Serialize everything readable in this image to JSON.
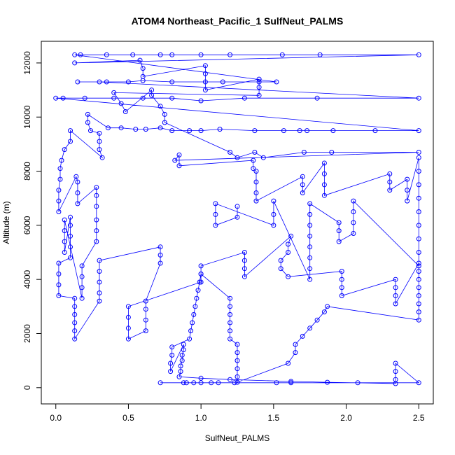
{
  "chart_data": {
    "type": "scatter",
    "title": "ATOM4 Northeast_Pacific_1 SulfNeut_PALMS",
    "xlabel": "SulfNeut_PALMS",
    "ylabel": "Altitude (m)",
    "xlim": [
      -0.1,
      2.6
    ],
    "ylim": [
      -600,
      12800
    ],
    "x_ticks": [
      "0.0",
      "0.5",
      "1.0",
      "1.5",
      "2.0",
      "2.5"
    ],
    "y_ticks": [
      "0",
      "2000",
      "4000",
      "6000",
      "8000",
      "10000",
      "12000"
    ],
    "grid": false,
    "legend": "none",
    "marker": "open-circle",
    "connect_points": true,
    "color": "#0000ff",
    "series": [
      {
        "values": [
          [
            0.72,
            180
          ],
          [
            0.88,
            180
          ],
          [
            0.9,
            180
          ],
          [
            0.95,
            180
          ],
          [
            1.0,
            180
          ],
          [
            1.07,
            180
          ],
          [
            1.12,
            180
          ],
          [
            1.23,
            180
          ],
          [
            1.52,
            180
          ],
          [
            1.62,
            180
          ],
          [
            2.08,
            180
          ],
          [
            2.5,
            180
          ],
          [
            2.34,
            900
          ],
          [
            2.34,
            600
          ],
          [
            2.34,
            300
          ],
          [
            2.34,
            150
          ],
          [
            1.87,
            200
          ],
          [
            1.62,
            230
          ],
          [
            1.2,
            300
          ],
          [
            1.0,
            350
          ],
          [
            0.85,
            400
          ],
          [
            0.86,
            600
          ],
          [
            0.86,
            800
          ],
          [
            0.87,
            1000
          ],
          [
            0.87,
            1200
          ],
          [
            0.88,
            1400
          ],
          [
            0.88,
            1600
          ],
          [
            0.79,
            600
          ],
          [
            0.79,
            900
          ],
          [
            0.8,
            1200
          ],
          [
            0.8,
            1500
          ],
          [
            0.92,
            1800
          ],
          [
            0.93,
            2100
          ],
          [
            0.94,
            2400
          ],
          [
            0.95,
            2700
          ],
          [
            0.96,
            3000
          ],
          [
            0.97,
            3300
          ],
          [
            0.98,
            3600
          ],
          [
            0.99,
            3900
          ],
          [
            1.0,
            4200
          ],
          [
            1.2,
            3300
          ],
          [
            1.2,
            3000
          ],
          [
            1.2,
            2700
          ],
          [
            1.2,
            2400
          ],
          [
            1.2,
            2100
          ],
          [
            1.2,
            1800
          ],
          [
            1.25,
            1600
          ],
          [
            1.25,
            1300
          ],
          [
            1.25,
            1000
          ],
          [
            1.25,
            700
          ],
          [
            1.25,
            400
          ],
          [
            1.25,
            200
          ],
          [
            1.6,
            900
          ],
          [
            1.65,
            1300
          ],
          [
            1.65,
            1600
          ],
          [
            1.7,
            1900
          ],
          [
            1.75,
            2200
          ],
          [
            1.8,
            2500
          ],
          [
            1.85,
            2800
          ],
          [
            1.87,
            3000
          ],
          [
            2.5,
            2500
          ],
          [
            2.5,
            2800
          ],
          [
            2.5,
            3100
          ],
          [
            2.5,
            3400
          ],
          [
            2.5,
            3700
          ],
          [
            2.5,
            4000
          ],
          [
            2.5,
            4300
          ],
          [
            2.5,
            4600
          ],
          [
            2.34,
            3100
          ],
          [
            2.34,
            3400
          ],
          [
            2.34,
            3700
          ],
          [
            2.34,
            4000
          ],
          [
            1.97,
            3400
          ],
          [
            1.97,
            3700
          ],
          [
            1.97,
            4000
          ],
          [
            1.97,
            4300
          ],
          [
            1.6,
            4100
          ],
          [
            1.55,
            4400
          ],
          [
            1.55,
            4700
          ],
          [
            1.6,
            5000
          ],
          [
            1.6,
            5300
          ],
          [
            1.62,
            5600
          ],
          [
            1.3,
            4100
          ],
          [
            1.3,
            4400
          ],
          [
            1.3,
            4700
          ],
          [
            1.3,
            5000
          ],
          [
            1.0,
            4500
          ],
          [
            1.0,
            4200
          ],
          [
            1.0,
            3900
          ],
          [
            0.5,
            3000
          ],
          [
            0.5,
            2600
          ],
          [
            0.5,
            2200
          ],
          [
            0.5,
            1800
          ],
          [
            0.62,
            2100
          ],
          [
            0.62,
            2500
          ],
          [
            0.62,
            2900
          ],
          [
            0.62,
            3200
          ],
          [
            0.72,
            4600
          ],
          [
            0.72,
            4900
          ],
          [
            0.72,
            5200
          ],
          [
            0.3,
            4700
          ],
          [
            0.3,
            4300
          ],
          [
            0.3,
            3900
          ],
          [
            0.3,
            3500
          ],
          [
            0.3,
            3200
          ],
          [
            0.13,
            1800
          ],
          [
            0.13,
            2100
          ],
          [
            0.13,
            2400
          ],
          [
            0.13,
            2700
          ],
          [
            0.13,
            3000
          ],
          [
            0.13,
            3300
          ],
          [
            0.02,
            3400
          ],
          [
            0.02,
            3800
          ],
          [
            0.02,
            4200
          ],
          [
            0.02,
            4600
          ],
          [
            0.1,
            4800
          ],
          [
            0.1,
            5200
          ],
          [
            0.1,
            5600
          ],
          [
            0.1,
            6000
          ],
          [
            0.1,
            6300
          ],
          [
            0.06,
            5000
          ],
          [
            0.06,
            5400
          ],
          [
            0.06,
            5800
          ],
          [
            0.06,
            6200
          ],
          [
            0.18,
            3300
          ],
          [
            0.18,
            3700
          ],
          [
            0.18,
            4100
          ],
          [
            0.18,
            4500
          ],
          [
            0.28,
            5400
          ],
          [
            0.28,
            5800
          ],
          [
            0.28,
            6200
          ],
          [
            0.28,
            6700
          ],
          [
            0.28,
            7100
          ],
          [
            0.28,
            7400
          ],
          [
            0.15,
            6800
          ],
          [
            0.15,
            7200
          ],
          [
            0.15,
            7600
          ],
          [
            0.14,
            7800
          ],
          [
            0.02,
            6500
          ],
          [
            0.02,
            6900
          ],
          [
            0.02,
            7300
          ],
          [
            0.03,
            7700
          ],
          [
            0.03,
            8100
          ],
          [
            0.04,
            8400
          ],
          [
            0.06,
            8800
          ],
          [
            0.1,
            9100
          ],
          [
            0.1,
            9500
          ],
          [
            0.32,
            8500
          ],
          [
            0.3,
            8800
          ],
          [
            0.3,
            9100
          ],
          [
            0.3,
            9400
          ],
          [
            0.24,
            9500
          ],
          [
            0.22,
            9800
          ],
          [
            0.22,
            10100
          ],
          [
            0.36,
            9600
          ],
          [
            0.45,
            9600
          ],
          [
            0.55,
            9550
          ],
          [
            0.62,
            9550
          ],
          [
            0.72,
            9600
          ],
          [
            0.8,
            9500
          ],
          [
            0.92,
            9500
          ],
          [
            1.0,
            9500
          ],
          [
            1.13,
            9550
          ],
          [
            1.37,
            9500
          ],
          [
            1.57,
            9500
          ],
          [
            1.68,
            9500
          ],
          [
            1.73,
            9500
          ],
          [
            1.91,
            9500
          ],
          [
            2.2,
            9500
          ],
          [
            2.5,
            9500
          ],
          [
            0.0,
            10700
          ],
          [
            0.05,
            10700
          ],
          [
            0.2,
            10700
          ],
          [
            0.4,
            10700
          ],
          [
            0.6,
            10700
          ],
          [
            0.8,
            10700
          ],
          [
            1.0,
            10600
          ],
          [
            1.3,
            10700
          ],
          [
            1.8,
            10700
          ],
          [
            2.5,
            10700
          ],
          [
            0.3,
            11300
          ],
          [
            0.35,
            11300
          ],
          [
            0.15,
            11300
          ],
          [
            0.5,
            11300
          ],
          [
            0.6,
            11350
          ],
          [
            0.8,
            11300
          ],
          [
            1.15,
            11300
          ],
          [
            1.4,
            11300
          ],
          [
            1.52,
            11300
          ],
          [
            0.13,
            12300
          ],
          [
            0.17,
            12300
          ],
          [
            0.35,
            12300
          ],
          [
            0.53,
            12300
          ],
          [
            0.72,
            12300
          ],
          [
            0.8,
            12300
          ],
          [
            1.0,
            12300
          ],
          [
            1.2,
            12300
          ],
          [
            1.56,
            12300
          ],
          [
            1.82,
            12300
          ],
          [
            2.5,
            12300
          ],
          [
            0.13,
            12000
          ],
          [
            0.58,
            12100
          ],
          [
            0.6,
            11800
          ],
          [
            0.6,
            11500
          ],
          [
            1.03,
            11900
          ],
          [
            1.03,
            11600
          ],
          [
            1.03,
            11300
          ],
          [
            1.03,
            11000
          ],
          [
            1.4,
            11400
          ],
          [
            1.4,
            11100
          ],
          [
            1.4,
            10800
          ],
          [
            0.4,
            10900
          ],
          [
            0.45,
            10500
          ],
          [
            0.48,
            10200
          ],
          [
            0.66,
            11000
          ],
          [
            0.66,
            10800
          ],
          [
            0.72,
            10400
          ],
          [
            0.75,
            10100
          ],
          [
            0.75,
            9800
          ],
          [
            1.2,
            8700
          ],
          [
            1.25,
            8500
          ],
          [
            1.37,
            8700
          ],
          [
            1.43,
            8500
          ],
          [
            1.71,
            8700
          ],
          [
            1.9,
            8700
          ],
          [
            2.5,
            8700
          ],
          [
            0.82,
            8400
          ],
          [
            0.85,
            8600
          ],
          [
            0.85,
            8200
          ],
          [
            1.36,
            8400
          ],
          [
            1.36,
            8100
          ],
          [
            1.38,
            8000
          ],
          [
            1.38,
            7600
          ],
          [
            1.38,
            7200
          ],
          [
            1.38,
            6900
          ],
          [
            1.7,
            7800
          ],
          [
            1.7,
            7500
          ],
          [
            1.7,
            7200
          ],
          [
            1.85,
            8300
          ],
          [
            1.85,
            7900
          ],
          [
            1.85,
            7500
          ],
          [
            1.85,
            7100
          ],
          [
            2.3,
            7900
          ],
          [
            2.3,
            7600
          ],
          [
            2.3,
            7300
          ],
          [
            2.42,
            7700
          ],
          [
            2.42,
            7300
          ],
          [
            2.42,
            6900
          ],
          [
            2.5,
            8500
          ],
          [
            2.5,
            8000
          ],
          [
            2.5,
            7500
          ],
          [
            2.5,
            7000
          ],
          [
            2.5,
            6500
          ],
          [
            2.5,
            6000
          ],
          [
            2.5,
            5500
          ],
          [
            2.5,
            5000
          ],
          [
            2.5,
            4500
          ],
          [
            2.05,
            6900
          ],
          [
            2.05,
            6500
          ],
          [
            2.05,
            6100
          ],
          [
            2.05,
            5700
          ],
          [
            1.95,
            5400
          ],
          [
            1.95,
            5800
          ],
          [
            1.95,
            6100
          ],
          [
            1.75,
            6800
          ],
          [
            1.75,
            6400
          ],
          [
            1.75,
            6000
          ],
          [
            1.75,
            5600
          ],
          [
            1.75,
            5200
          ],
          [
            1.75,
            4800
          ],
          [
            1.75,
            4400
          ],
          [
            1.75,
            4000
          ],
          [
            1.5,
            6900
          ],
          [
            1.5,
            6400
          ],
          [
            1.5,
            6000
          ],
          [
            1.1,
            6800
          ],
          [
            1.1,
            6400
          ],
          [
            1.1,
            6000
          ],
          [
            1.25,
            6300
          ],
          [
            1.25,
            6700
          ]
        ]
      }
    ]
  }
}
